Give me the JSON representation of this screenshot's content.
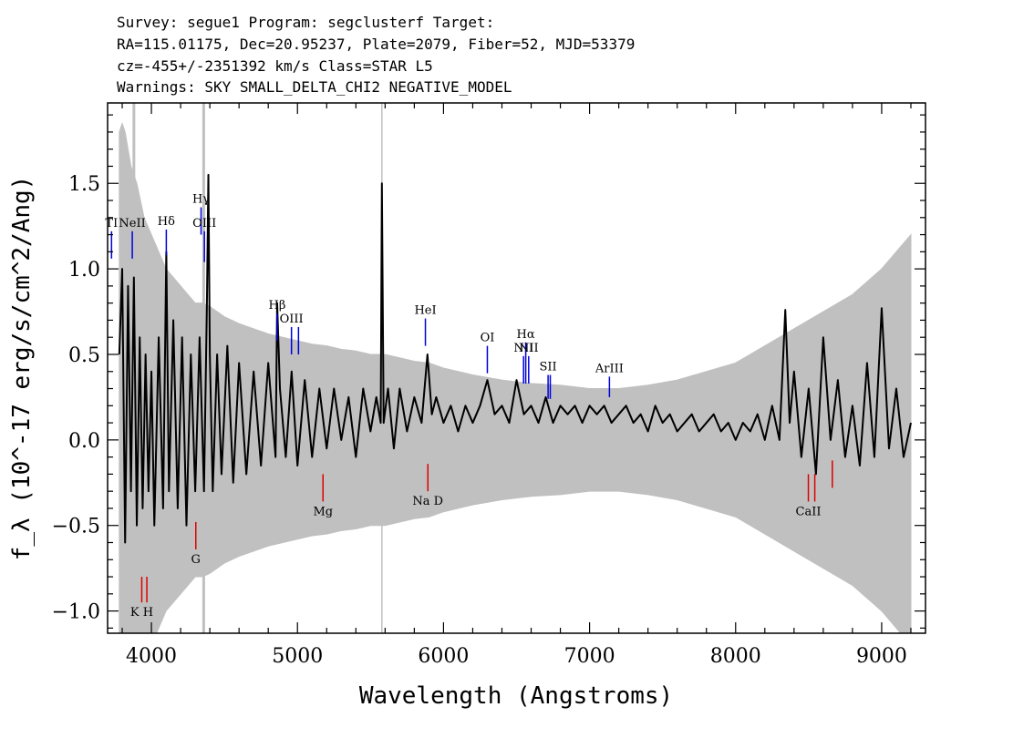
{
  "header": {
    "line1": "Survey: segue1 Program: segclusterf Target:",
    "line2": "RA=115.01175, Dec=20.95237, Plate=2079, Fiber=52, MJD=53379",
    "line3": "cz=-455+/-2351392 km/s Class=STAR L5",
    "line4": "Warnings: SKY SMALL_DELTA_CHI2 NEGATIVE_MODEL"
  },
  "chart_data": {
    "type": "line",
    "xlabel": "Wavelength (Angstroms)",
    "ylabel": "f_λ (10^-17 erg/s/cm^2/Ang)",
    "xlim": [
      3700,
      9300
    ],
    "ylim": [
      -1.13,
      1.97
    ],
    "x_ticks": [
      4000,
      5000,
      6000,
      7000,
      8000,
      9000
    ],
    "y_ticks": [
      -1.0,
      -0.5,
      0.0,
      0.5,
      1.0,
      1.5
    ],
    "x_tick_labels": [
      "4000",
      "5000",
      "6000",
      "7000",
      "8000",
      "9000"
    ],
    "y_tick_labels": [
      "−1.0",
      "−0.5",
      "0.0",
      "0.5",
      "1.0",
      "1.5"
    ],
    "grid": false,
    "colors": {
      "flux": "#000000",
      "error": "#c0c0c0",
      "emission": "#0000dd",
      "absorption": "#dd0000"
    },
    "series": [
      {
        "role": "flux",
        "x": [
          3780,
          3800,
          3820,
          3840,
          3860,
          3880,
          3900,
          3920,
          3940,
          3960,
          3980,
          4000,
          4020,
          4050,
          4080,
          4102,
          4120,
          4150,
          4180,
          4210,
          4240,
          4270,
          4300,
          4330,
          4360,
          4380,
          4390,
          4400,
          4420,
          4450,
          4480,
          4520,
          4560,
          4600,
          4650,
          4700,
          4750,
          4800,
          4850,
          4861,
          4880,
          4920,
          4960,
          5000,
          5050,
          5100,
          5150,
          5200,
          5250,
          5300,
          5350,
          5400,
          5450,
          5500,
          5540,
          5570,
          5578,
          5590,
          5620,
          5660,
          5700,
          5750,
          5800,
          5850,
          5890,
          5920,
          5950,
          6000,
          6050,
          6100,
          6150,
          6200,
          6250,
          6300,
          6350,
          6400,
          6450,
          6500,
          6550,
          6600,
          6650,
          6700,
          6750,
          6800,
          6850,
          6900,
          6950,
          7000,
          7050,
          7100,
          7150,
          7200,
          7250,
          7300,
          7350,
          7400,
          7450,
          7500,
          7550,
          7600,
          7650,
          7700,
          7750,
          7800,
          7850,
          7900,
          7950,
          8000,
          8050,
          8100,
          8150,
          8200,
          8250,
          8300,
          8340,
          8370,
          8400,
          8450,
          8500,
          8550,
          8600,
          8650,
          8700,
          8750,
          8800,
          8850,
          8900,
          8950,
          9000,
          9050,
          9100,
          9150,
          9200
        ],
        "y": [
          0.5,
          1.0,
          -0.6,
          0.9,
          -0.3,
          0.95,
          -0.5,
          0.6,
          -0.4,
          0.5,
          -0.3,
          0.4,
          -0.5,
          0.6,
          -0.4,
          1.1,
          -0.3,
          0.7,
          -0.4,
          0.6,
          -0.5,
          0.5,
          -0.3,
          0.6,
          -0.3,
          0.8,
          1.55,
          0.5,
          -0.3,
          0.5,
          -0.2,
          0.55,
          -0.25,
          0.45,
          -0.2,
          0.4,
          -0.15,
          0.45,
          -0.1,
          0.8,
          0.3,
          -0.1,
          0.4,
          -0.15,
          0.35,
          -0.1,
          0.3,
          -0.05,
          0.3,
          0.0,
          0.25,
          -0.1,
          0.3,
          0.05,
          0.25,
          0.1,
          1.5,
          0.1,
          0.3,
          -0.05,
          0.3,
          0.05,
          0.25,
          0.1,
          0.5,
          0.15,
          0.25,
          0.1,
          0.2,
          0.05,
          0.2,
          0.1,
          0.2,
          0.35,
          0.15,
          0.2,
          0.1,
          0.35,
          0.15,
          0.2,
          0.1,
          0.25,
          0.1,
          0.2,
          0.15,
          0.2,
          0.1,
          0.2,
          0.15,
          0.2,
          0.1,
          0.15,
          0.2,
          0.1,
          0.15,
          0.05,
          0.2,
          0.1,
          0.15,
          0.05,
          0.1,
          0.15,
          0.05,
          0.1,
          0.15,
          0.05,
          0.1,
          0.0,
          0.1,
          0.05,
          0.15,
          0.0,
          0.2,
          0.0,
          0.76,
          0.1,
          0.4,
          -0.1,
          0.3,
          -0.2,
          0.6,
          0.0,
          0.35,
          -0.1,
          0.2,
          -0.15,
          0.45,
          -0.1,
          0.77,
          -0.05,
          0.3,
          -0.1,
          0.1
        ]
      },
      {
        "role": "error",
        "x": [
          3780,
          3800,
          3820,
          3840,
          3860,
          3900,
          3950,
          4000,
          4050,
          4100,
          4150,
          4200,
          4250,
          4300,
          4350,
          4400,
          4450,
          4500,
          4600,
          4700,
          4800,
          4900,
          5000,
          5100,
          5200,
          5300,
          5400,
          5500,
          5600,
          5700,
          5800,
          5900,
          6000,
          6200,
          6400,
          6600,
          6800,
          7000,
          7200,
          7400,
          7600,
          7800,
          8000,
          8200,
          8400,
          8600,
          8800,
          9000,
          9200
        ],
        "y": [
          1.8,
          1.85,
          1.8,
          1.7,
          1.6,
          1.5,
          1.3,
          1.2,
          1.1,
          1.0,
          0.95,
          0.9,
          0.85,
          0.8,
          0.8,
          0.78,
          0.75,
          0.72,
          0.68,
          0.65,
          0.62,
          0.6,
          0.58,
          0.56,
          0.55,
          0.53,
          0.52,
          0.5,
          0.5,
          0.48,
          0.46,
          0.45,
          0.42,
          0.38,
          0.35,
          0.33,
          0.32,
          0.3,
          0.3,
          0.32,
          0.35,
          0.4,
          0.45,
          0.55,
          0.65,
          0.75,
          0.85,
          1.0,
          1.2
        ]
      }
    ],
    "sky_lines": [
      3880,
      4358,
      5578
    ],
    "emission_lines": [
      {
        "label": "TI",
        "x": 3727,
        "y_top": 1.22,
        "y_bottom": 1.06
      },
      {
        "label": "NeII",
        "x": 3869,
        "y_top": 1.22,
        "y_bottom": 1.06
      },
      {
        "label": "Hδ",
        "x": 4102,
        "y_top": 1.23,
        "y_bottom": 1.08
      },
      {
        "label": "Hγ",
        "x": 4340,
        "y_top": 1.36,
        "y_bottom": 1.2
      },
      {
        "label": "OIII",
        "x": 4363,
        "y_top": 1.22,
        "y_bottom": 1.04
      },
      {
        "label": "Hβ",
        "x": 4861,
        "y_top": 0.74,
        "y_bottom": 0.58
      },
      {
        "label": "OIII",
        "x": 4959,
        "y_top": 0.66,
        "y_bottom": 0.5
      },
      {
        "label": "",
        "x": 5007,
        "y_top": 0.66,
        "y_bottom": 0.5
      },
      {
        "label": "HeI",
        "x": 5876,
        "y_top": 0.71,
        "y_bottom": 0.55
      },
      {
        "label": "OI",
        "x": 6300,
        "y_top": 0.55,
        "y_bottom": 0.39
      },
      {
        "label": "NII",
        "x": 6548,
        "y_top": 0.49,
        "y_bottom": 0.33
      },
      {
        "label": "Hα",
        "x": 6563,
        "y_top": 0.57,
        "y_bottom": 0.33
      },
      {
        "label": "NII",
        "x": 6583,
        "y_top": 0.49,
        "y_bottom": 0.33
      },
      {
        "label": "SII",
        "x": 6716,
        "y_top": 0.38,
        "y_bottom": 0.24
      },
      {
        "label": "",
        "x": 6731,
        "y_top": 0.38,
        "y_bottom": 0.24
      },
      {
        "label": "ArIII",
        "x": 7136,
        "y_top": 0.37,
        "y_bottom": 0.25
      }
    ],
    "absorption_lines": [
      {
        "label": "K H",
        "x": 3934,
        "y_top": -0.8,
        "y_bottom": -0.95
      },
      {
        "label": "",
        "x": 3969,
        "y_top": -0.8,
        "y_bottom": -0.95
      },
      {
        "label": "G",
        "x": 4304,
        "y_top": -0.48,
        "y_bottom": -0.64
      },
      {
        "label": "Mg",
        "x": 5175,
        "y_top": -0.2,
        "y_bottom": -0.36
      },
      {
        "label": "Na D",
        "x": 5893,
        "y_top": -0.14,
        "y_bottom": -0.3
      },
      {
        "label": "CaII",
        "x": 8498,
        "y_top": -0.2,
        "y_bottom": -0.36
      },
      {
        "label": "",
        "x": 8542,
        "y_top": -0.2,
        "y_bottom": -0.36
      },
      {
        "label": "",
        "x": 8662,
        "y_top": -0.12,
        "y_bottom": -0.28
      }
    ]
  }
}
